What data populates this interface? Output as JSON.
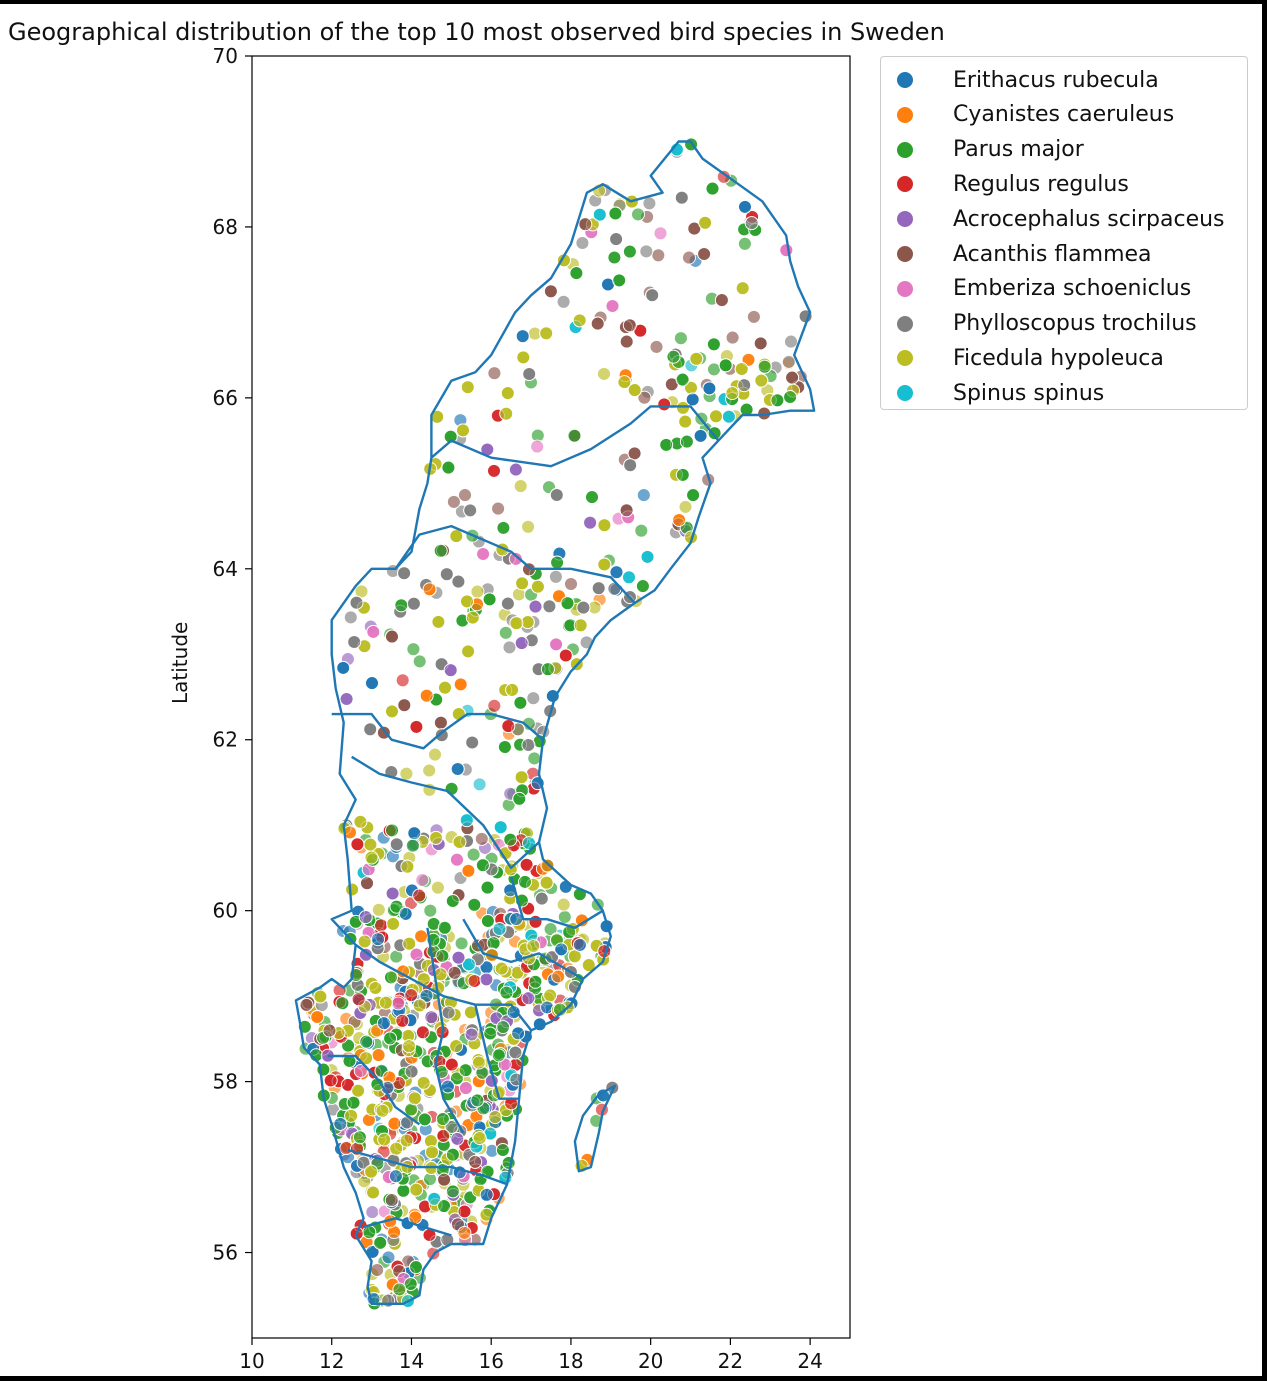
{
  "chart_data": {
    "type": "scatter",
    "title": "Geographical distribution of the top 10 most observed bird species in Sweden",
    "xlabel": "",
    "ylabel": "Latitude",
    "xlim": [
      10,
      25
    ],
    "ylim": [
      55,
      70
    ],
    "xticks": [
      10,
      12,
      14,
      16,
      18,
      20,
      22,
      24
    ],
    "yticks": [
      56,
      58,
      60,
      62,
      64,
      66,
      68,
      70
    ],
    "grid": false,
    "legend_position": "outside-top-right",
    "series": [
      {
        "name": "Erithacus rubecula",
        "color": "#1f77b4"
      },
      {
        "name": "Cyanistes caeruleus",
        "color": "#ff7f0e"
      },
      {
        "name": "Parus major",
        "color": "#2ca02c"
      },
      {
        "name": "Regulus regulus",
        "color": "#d62728"
      },
      {
        "name": "Acrocephalus scirpaceus",
        "color": "#9467bd"
      },
      {
        "name": "Acanthis flammea",
        "color": "#8c564b"
      },
      {
        "name": "Emberiza schoeniclus",
        "color": "#e377c2"
      },
      {
        "name": "Phylloscopus trochilus",
        "color": "#7f7f7f"
      },
      {
        "name": "Ficedula hypoleuca",
        "color": "#bcbd22"
      },
      {
        "name": "Spinus spinus",
        "color": "#17becf"
      }
    ],
    "outline_color": "#1f77b4",
    "sweden_outline": [
      [
        11.1,
        58.95
      ],
      [
        11.7,
        59.1
      ],
      [
        12.0,
        59.2
      ],
      [
        12.3,
        59.1
      ],
      [
        12.5,
        59.2
      ],
      [
        12.6,
        59.6
      ],
      [
        12.0,
        59.9
      ],
      [
        12.5,
        60.0
      ],
      [
        12.4,
        60.6
      ],
      [
        12.3,
        61.0
      ],
      [
        12.6,
        61.3
      ],
      [
        12.2,
        61.6
      ],
      [
        12.3,
        62.2
      ],
      [
        12.1,
        62.6
      ],
      [
        12.0,
        63.0
      ],
      [
        12.0,
        63.4
      ],
      [
        12.6,
        63.8
      ],
      [
        13.0,
        64.0
      ],
      [
        13.6,
        64.0
      ],
      [
        14.0,
        64.2
      ],
      [
        14.2,
        64.7
      ],
      [
        14.4,
        65.0
      ],
      [
        14.5,
        65.3
      ],
      [
        14.5,
        65.8
      ],
      [
        15.0,
        66.2
      ],
      [
        15.6,
        66.3
      ],
      [
        16.0,
        66.5
      ],
      [
        16.6,
        67.0
      ],
      [
        17.0,
        67.2
      ],
      [
        17.5,
        67.4
      ],
      [
        18.0,
        67.8
      ],
      [
        18.4,
        68.4
      ],
      [
        18.8,
        68.5
      ],
      [
        19.5,
        68.3
      ],
      [
        20.3,
        68.4
      ],
      [
        20.0,
        68.6
      ],
      [
        20.7,
        69.0
      ],
      [
        21.0,
        69.0
      ],
      [
        21.3,
        68.8
      ],
      [
        22.2,
        68.5
      ],
      [
        22.8,
        68.3
      ],
      [
        23.4,
        67.9
      ],
      [
        23.5,
        67.6
      ],
      [
        23.7,
        67.3
      ],
      [
        24.0,
        67.0
      ],
      [
        23.6,
        66.5
      ],
      [
        24.0,
        66.1
      ],
      [
        24.1,
        65.85
      ],
      [
        23.5,
        65.85
      ],
      [
        22.8,
        65.8
      ],
      [
        22.3,
        65.8
      ],
      [
        21.7,
        65.5
      ],
      [
        21.3,
        65.3
      ],
      [
        21.5,
        65.0
      ],
      [
        21.2,
        64.6
      ],
      [
        21.0,
        64.3
      ],
      [
        20.5,
        64.0
      ],
      [
        20.1,
        63.75
      ],
      [
        19.6,
        63.6
      ],
      [
        19.0,
        63.4
      ],
      [
        18.6,
        63.2
      ],
      [
        18.4,
        63.0
      ],
      [
        18.0,
        62.8
      ],
      [
        17.6,
        62.5
      ],
      [
        17.3,
        62.0
      ],
      [
        17.2,
        61.6
      ],
      [
        17.4,
        61.2
      ],
      [
        17.2,
        60.8
      ],
      [
        17.3,
        60.6
      ],
      [
        18.0,
        60.3
      ],
      [
        18.5,
        60.2
      ],
      [
        18.8,
        60.0
      ],
      [
        19.0,
        59.7
      ],
      [
        18.8,
        59.4
      ],
      [
        18.3,
        59.2
      ],
      [
        18.0,
        58.9
      ],
      [
        17.5,
        58.7
      ],
      [
        17.0,
        58.6
      ],
      [
        16.8,
        58.3
      ],
      [
        16.7,
        57.8
      ],
      [
        16.6,
        57.3
      ],
      [
        16.4,
        56.8
      ],
      [
        16.0,
        56.4
      ],
      [
        15.8,
        56.1
      ],
      [
        15.0,
        56.1
      ],
      [
        14.6,
        56.0
      ],
      [
        14.3,
        55.8
      ],
      [
        14.2,
        55.5
      ],
      [
        13.8,
        55.4
      ],
      [
        13.0,
        55.4
      ],
      [
        12.9,
        55.6
      ],
      [
        13.0,
        55.9
      ],
      [
        12.6,
        56.2
      ],
      [
        12.8,
        56.4
      ],
      [
        12.6,
        56.7
      ],
      [
        12.3,
        57.0
      ],
      [
        12.0,
        57.5
      ],
      [
        11.8,
        57.8
      ],
      [
        11.7,
        58.2
      ],
      [
        11.3,
        58.4
      ],
      [
        11.2,
        58.7
      ],
      [
        11.1,
        58.95
      ]
    ],
    "gotland_outline": [
      [
        18.1,
        57.3
      ],
      [
        18.3,
        57.6
      ],
      [
        18.7,
        57.85
      ],
      [
        19.1,
        57.95
      ],
      [
        18.8,
        57.65
      ],
      [
        18.7,
        57.4
      ],
      [
        18.5,
        57.0
      ],
      [
        18.2,
        56.95
      ],
      [
        18.1,
        57.3
      ]
    ],
    "inner_borders": [
      [
        [
          14.5,
          65.3
        ],
        [
          15.0,
          65.5
        ],
        [
          16.0,
          65.3
        ],
        [
          17.5,
          65.2
        ],
        [
          18.5,
          65.4
        ],
        [
          19.5,
          65.7
        ],
        [
          20.0,
          65.9
        ],
        [
          21.0,
          65.9
        ],
        [
          21.7,
          65.5
        ]
      ],
      [
        [
          13.6,
          64.0
        ],
        [
          14.2,
          64.4
        ],
        [
          15.0,
          64.5
        ],
        [
          16.0,
          64.3
        ],
        [
          16.5,
          64.2
        ],
        [
          17.0,
          64.0
        ],
        [
          18.0,
          64.0
        ],
        [
          19.0,
          63.9
        ],
        [
          19.6,
          63.6
        ]
      ],
      [
        [
          12.0,
          62.3
        ],
        [
          13.0,
          62.3
        ],
        [
          13.5,
          62.0
        ],
        [
          14.3,
          61.9
        ],
        [
          14.8,
          62.1
        ],
        [
          15.4,
          62.3
        ],
        [
          16.0,
          62.3
        ],
        [
          16.8,
          62.2
        ],
        [
          17.3,
          62.0
        ]
      ],
      [
        [
          12.5,
          61.8
        ],
        [
          13.2,
          61.6
        ],
        [
          14.0,
          61.5
        ],
        [
          14.9,
          61.4
        ],
        [
          15.8,
          61.0
        ],
        [
          16.5,
          60.5
        ],
        [
          17.2,
          60.8
        ]
      ],
      [
        [
          12.6,
          59.6
        ],
        [
          13.2,
          59.4
        ],
        [
          14.0,
          59.2
        ],
        [
          14.8,
          59.0
        ],
        [
          15.6,
          58.9
        ],
        [
          16.5,
          58.9
        ],
        [
          17.0,
          58.6
        ]
      ],
      [
        [
          14.4,
          59.8
        ],
        [
          14.6,
          59.2
        ],
        [
          14.8,
          58.6
        ],
        [
          14.6,
          58.2
        ],
        [
          14.8,
          57.8
        ],
        [
          15.3,
          57.4
        ]
      ],
      [
        [
          12.4,
          57.2
        ],
        [
          13.2,
          57.1
        ],
        [
          14.0,
          57.0
        ],
        [
          15.0,
          57.0
        ],
        [
          15.8,
          56.9
        ],
        [
          16.4,
          56.8
        ]
      ],
      [
        [
          12.8,
          56.3
        ],
        [
          13.6,
          56.4
        ],
        [
          14.3,
          56.3
        ],
        [
          15.0,
          56.2
        ]
      ],
      [
        [
          15.3,
          59.9
        ],
        [
          15.8,
          59.5
        ],
        [
          16.5,
          59.4
        ],
        [
          17.2,
          59.5
        ],
        [
          18.3,
          59.2
        ]
      ],
      [
        [
          16.5,
          60.4
        ],
        [
          16.8,
          59.9
        ],
        [
          17.4,
          59.9
        ],
        [
          18.1,
          59.8
        ],
        [
          18.8,
          60.0
        ]
      ],
      [
        [
          11.9,
          58.3
        ],
        [
          12.6,
          58.3
        ],
        [
          13.2,
          58.0
        ],
        [
          13.6,
          57.7
        ],
        [
          14.2,
          57.5
        ]
      ],
      [
        [
          15.6,
          58.9
        ],
        [
          15.9,
          58.3
        ],
        [
          16.2,
          57.8
        ],
        [
          16.7,
          57.8
        ]
      ]
    ]
  }
}
